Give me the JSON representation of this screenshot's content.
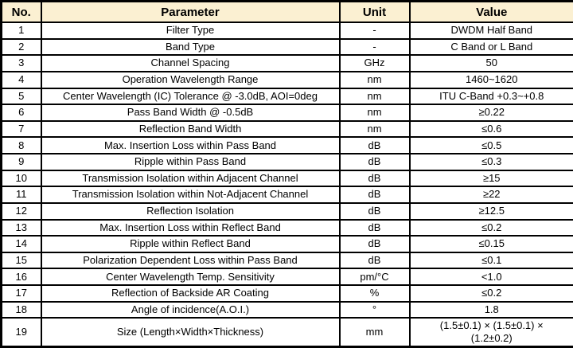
{
  "colors": {
    "header_bg": "#FBF0D2",
    "border": "#000000",
    "text": "#000000"
  },
  "table": {
    "headers": [
      "No.",
      "Parameter",
      "Unit",
      "Value"
    ],
    "rows": [
      {
        "no": "1",
        "parameter": "Filter Type",
        "unit": "-",
        "value": "DWDM Half Band"
      },
      {
        "no": "2",
        "parameter": "Band Type",
        "unit": "-",
        "value": "C Band or L Band"
      },
      {
        "no": "3",
        "parameter": "Channel Spacing",
        "unit": "GHz",
        "value": "50"
      },
      {
        "no": "4",
        "parameter": "Operation Wavelength Range",
        "unit": "nm",
        "value": "1460~1620"
      },
      {
        "no": "5",
        "parameter": "Center Wavelength (IC) Tolerance @ -3.0dB, AOI=0deg",
        "unit": "nm",
        "value": "ITU C-Band +0.3~+0.8"
      },
      {
        "no": "6",
        "parameter": "Pass Band Width @ -0.5dB",
        "unit": "nm",
        "value": "≥0.22"
      },
      {
        "no": "7",
        "parameter": "Reflection Band Width",
        "unit": "nm",
        "value": "≤0.6"
      },
      {
        "no": "8",
        "parameter": "Max. Insertion Loss within Pass Band",
        "unit": "dB",
        "value": "≤0.5"
      },
      {
        "no": "9",
        "parameter": "Ripple within Pass Band",
        "unit": "dB",
        "value": "≤0.3"
      },
      {
        "no": "10",
        "parameter": "Transmission Isolation within Adjacent Channel",
        "unit": "dB",
        "value": "≥15"
      },
      {
        "no": "11",
        "parameter": "Transmission Isolation within Not-Adjacent Channel",
        "unit": "dB",
        "value": "≥22"
      },
      {
        "no": "12",
        "parameter": "Reflection Isolation",
        "unit": "dB",
        "value": "≥12.5"
      },
      {
        "no": "13",
        "parameter": "Max. Insertion Loss within Reflect Band",
        "unit": "dB",
        "value": "≤0.2"
      },
      {
        "no": "14",
        "parameter": "Ripple within Reflect Band",
        "unit": "dB",
        "value": "≤0.15"
      },
      {
        "no": "15",
        "parameter": "Polarization Dependent Loss within Pass Band",
        "unit": "dB",
        "value": "≤0.1"
      },
      {
        "no": "16",
        "parameter": "Center Wavelength Temp. Sensitivity",
        "unit": "pm/°C",
        "value": "<1.0"
      },
      {
        "no": "17",
        "parameter": "Reflection of Backside AR Coating",
        "unit": "%",
        "value": "≤0.2"
      },
      {
        "no": "18",
        "parameter": "Angle of incidence(A.O.I.)",
        "unit": "°",
        "value": "1.8"
      },
      {
        "no": "19",
        "parameter": "Size (Length×Width×Thickness)",
        "unit": "mm",
        "value": "(1.5±0.1) × (1.5±0.1) ×\n(1.2±0.2)"
      }
    ]
  }
}
